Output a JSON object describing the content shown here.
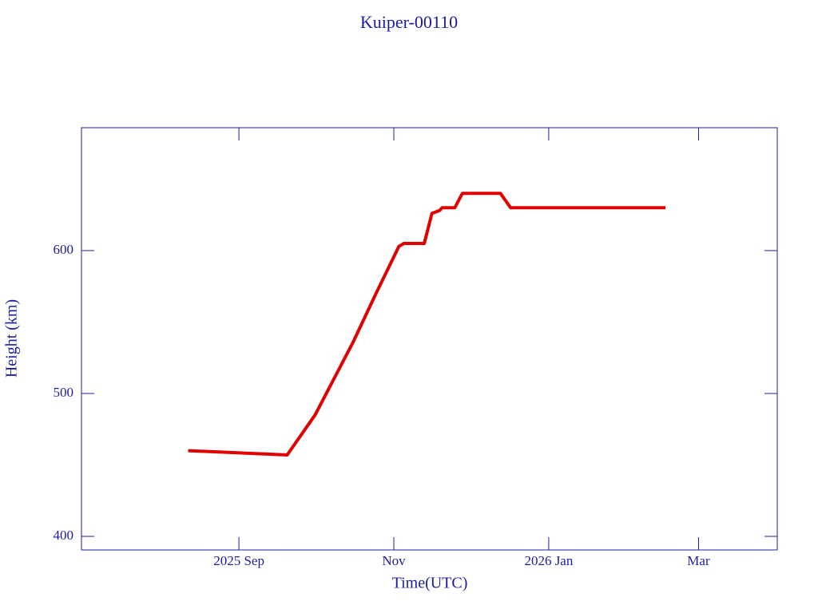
{
  "chart_data": {
    "type": "line",
    "title": "Kuiper-00110",
    "x_label": "Time(UTC)",
    "y_label": "Height (km)",
    "x": [
      "2025-08-12",
      "2025-09-20",
      "2025-10-01",
      "2025-10-16",
      "2025-10-25",
      "2025-11-03",
      "2025-11-05",
      "2025-11-13",
      "2025-11-16",
      "2025-11-19",
      "2025-11-20",
      "2025-11-25",
      "2025-11-28",
      "2025-12-13",
      "2025-12-17",
      "2026-02-16"
    ],
    "series": [
      {
        "color": "#e00000",
        "values": [
          460,
          457,
          485,
          536,
          570,
          603,
          605,
          605,
          626,
          628,
          630,
          630,
          640,
          640,
          630,
          630
        ]
      }
    ],
    "xlim": [
      "2025-07-01",
      "2026-04-01"
    ],
    "xticks": [
      {
        "value": "2025-09-01",
        "label": "2025 Sep"
      },
      {
        "value": "2025-11-01",
        "label": "Nov"
      },
      {
        "value": "2026-01-01",
        "label": "2026 Jan"
      },
      {
        "value": "2026-03-01",
        "label": "Mar"
      }
    ],
    "ylim": [
      390.5,
      686
    ],
    "yticks": [
      400,
      500,
      600
    ]
  }
}
